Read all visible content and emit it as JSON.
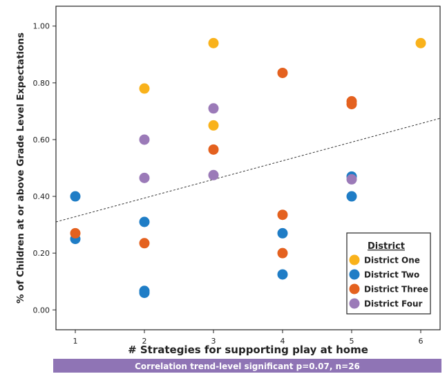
{
  "chart_data": {
    "type": "scatter",
    "xlabel": "# Strategies for supporting play at home",
    "ylabel": "% of Children at or above Grade Level Expectations",
    "xlim": [
      0.72,
      6.28
    ],
    "ylim": [
      -0.07,
      1.07
    ],
    "x_ticks": [
      "1",
      "2",
      "3",
      "4",
      "5",
      "6"
    ],
    "y_ticks": [
      "0.00",
      "0.20",
      "0.40",
      "0.60",
      "0.80",
      "1.00"
    ],
    "grid": false,
    "legend": {
      "title": "District",
      "position": "bottom-right"
    },
    "trendline": {
      "style": "dashed",
      "from": [
        0.72,
        0.31
      ],
      "to": [
        6.28,
        0.675
      ]
    },
    "series": [
      {
        "name": "District One",
        "color": "#f9b21b",
        "points": [
          [
            2,
            0.78
          ],
          [
            3,
            0.94
          ],
          [
            3,
            0.65
          ],
          [
            6,
            0.94
          ]
        ]
      },
      {
        "name": "District Two",
        "color": "#1f7dc6",
        "points": [
          [
            1,
            0.4
          ],
          [
            1,
            0.25
          ],
          [
            2,
            0.31
          ],
          [
            2,
            0.067
          ],
          [
            2,
            0.06
          ],
          [
            4,
            0.27
          ],
          [
            4,
            0.125
          ],
          [
            5,
            0.47
          ],
          [
            5,
            0.4
          ]
        ]
      },
      {
        "name": "District Three",
        "color": "#e4611f",
        "points": [
          [
            1,
            0.27
          ],
          [
            2,
            0.235
          ],
          [
            3,
            0.565
          ],
          [
            4,
            0.835
          ],
          [
            4,
            0.335
          ],
          [
            4,
            0.2
          ],
          [
            5,
            0.735
          ],
          [
            5,
            0.725
          ]
        ]
      },
      {
        "name": "District Four",
        "color": "#9b7ab8",
        "points": [
          [
            2,
            0.6
          ],
          [
            2,
            0.465
          ],
          [
            3,
            0.71
          ],
          [
            3,
            0.475
          ],
          [
            5,
            0.46
          ]
        ]
      }
    ]
  },
  "footer": {
    "text": "Correlation trend-level significant p=0.07, n=26"
  }
}
